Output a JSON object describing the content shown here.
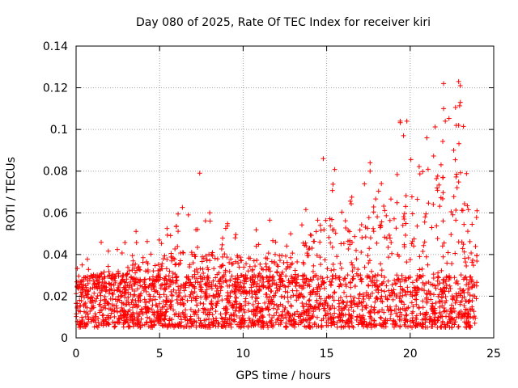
{
  "chart_data": {
    "type": "scatter",
    "title": "Day 080 of 2025, Rate Of TEC Index for receiver kiri",
    "xlabel": "GPS time / hours",
    "ylabel": "ROTI / TECUs",
    "xlim": [
      0,
      25
    ],
    "ylim": [
      0,
      0.14
    ],
    "grid": true,
    "marker": "+",
    "color": "#ff0000",
    "x_ticks": [
      0,
      5,
      10,
      15,
      20,
      25
    ],
    "x_tick_labels": [
      "0",
      "5",
      "10",
      "15",
      "20",
      "25"
    ],
    "y_ticks": [
      0,
      0.02,
      0.04,
      0.06,
      0.08,
      0.1,
      0.12,
      0.14
    ],
    "y_tick_labels": [
      "0",
      "0.02",
      "0.04",
      "0.06",
      "0.08",
      "0.1",
      "0.12",
      "0.14"
    ],
    "series": [
      {
        "name": "ROTI",
        "x_range": [
          0.0,
          24.0
        ],
        "baseline_band": [
          0.005,
          0.03
        ],
        "envelope": [
          {
            "x": 0.0,
            "y": 0.035
          },
          {
            "x": 0.7,
            "y": 0.045
          },
          {
            "x": 2.5,
            "y": 0.047
          },
          {
            "x": 4.3,
            "y": 0.054
          },
          {
            "x": 6.3,
            "y": 0.064
          },
          {
            "x": 7.4,
            "y": 0.055
          },
          {
            "x": 8.0,
            "y": 0.06
          },
          {
            "x": 11.0,
            "y": 0.055
          },
          {
            "x": 13.0,
            "y": 0.06
          },
          {
            "x": 14.8,
            "y": 0.086
          },
          {
            "x": 16.7,
            "y": 0.073
          },
          {
            "x": 17.6,
            "y": 0.084
          },
          {
            "x": 19.4,
            "y": 0.104
          },
          {
            "x": 19.8,
            "y": 0.097
          },
          {
            "x": 21.0,
            "y": 0.096
          },
          {
            "x": 22.0,
            "y": 0.122
          },
          {
            "x": 22.9,
            "y": 0.123
          },
          {
            "x": 24.0,
            "y": 0.061
          }
        ],
        "notable_points": [
          {
            "x": 7.4,
            "y": 0.079
          },
          {
            "x": 8.0,
            "y": 0.06
          },
          {
            "x": 14.8,
            "y": 0.086
          },
          {
            "x": 17.6,
            "y": 0.084
          },
          {
            "x": 17.6,
            "y": 0.08
          },
          {
            "x": 19.4,
            "y": 0.104
          },
          {
            "x": 19.8,
            "y": 0.104
          },
          {
            "x": 19.6,
            "y": 0.097
          },
          {
            "x": 21.0,
            "y": 0.096
          },
          {
            "x": 22.0,
            "y": 0.122
          },
          {
            "x": 22.0,
            "y": 0.11
          },
          {
            "x": 22.1,
            "y": 0.104
          },
          {
            "x": 22.6,
            "y": 0.09
          },
          {
            "x": 22.9,
            "y": 0.123
          },
          {
            "x": 23.0,
            "y": 0.121
          },
          {
            "x": 22.9,
            "y": 0.102
          },
          {
            "x": 23.0,
            "y": 0.113
          },
          {
            "x": 24.0,
            "y": 0.061
          }
        ]
      }
    ]
  }
}
